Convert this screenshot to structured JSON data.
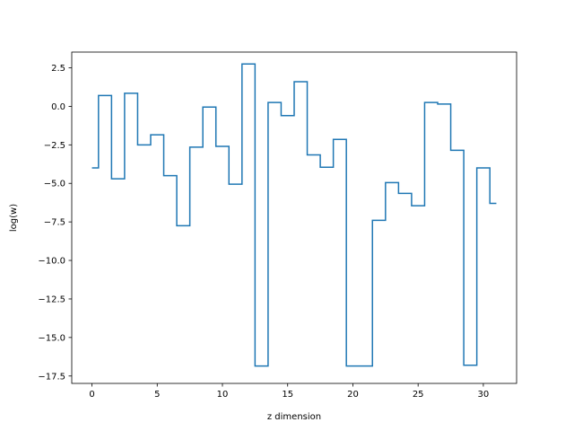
{
  "chart_data": {
    "type": "line",
    "drawstyle": "steps-mid",
    "title": "",
    "xlabel": "z dimension",
    "ylabel": "log(w)",
    "xlim": [
      -1.55,
      32.55
    ],
    "ylim": [
      -17.98,
      3.52
    ],
    "grid": false,
    "legend": "none",
    "x_ticks": [
      0,
      5,
      10,
      15,
      20,
      25,
      30
    ],
    "x_tick_labels": [
      "0",
      "5",
      "10",
      "15",
      "20",
      "25",
      "30"
    ],
    "y_ticks": [
      2.5,
      0.0,
      -2.5,
      -5.0,
      -7.5,
      -10.0,
      -12.5,
      -15.0,
      -17.5
    ],
    "y_tick_labels": [
      "2.5",
      "0.0",
      "−2.5",
      "−5.0",
      "−7.5",
      "−10.0",
      "−12.5",
      "−15.0",
      "−17.5"
    ],
    "series": [
      {
        "color": "#1f77b4",
        "x": [
          0,
          1,
          2,
          3,
          4,
          5,
          6,
          7,
          8,
          9,
          10,
          11,
          12,
          13,
          14,
          15,
          16,
          17,
          18,
          19,
          20,
          21,
          22,
          23,
          24,
          25,
          26,
          27,
          28,
          29,
          30,
          31
        ],
        "y": [
          -4.0,
          0.7,
          -4.7,
          0.85,
          -2.5,
          -1.85,
          -4.5,
          -7.75,
          -2.65,
          -0.05,
          -2.6,
          -5.05,
          2.75,
          -16.85,
          0.25,
          -0.6,
          1.6,
          -3.15,
          -3.95,
          -2.15,
          -16.85,
          -16.85,
          -7.4,
          -4.95,
          -5.65,
          -6.45,
          0.25,
          0.15,
          -2.85,
          -16.8,
          -4.0,
          -6.3
        ]
      }
    ]
  }
}
